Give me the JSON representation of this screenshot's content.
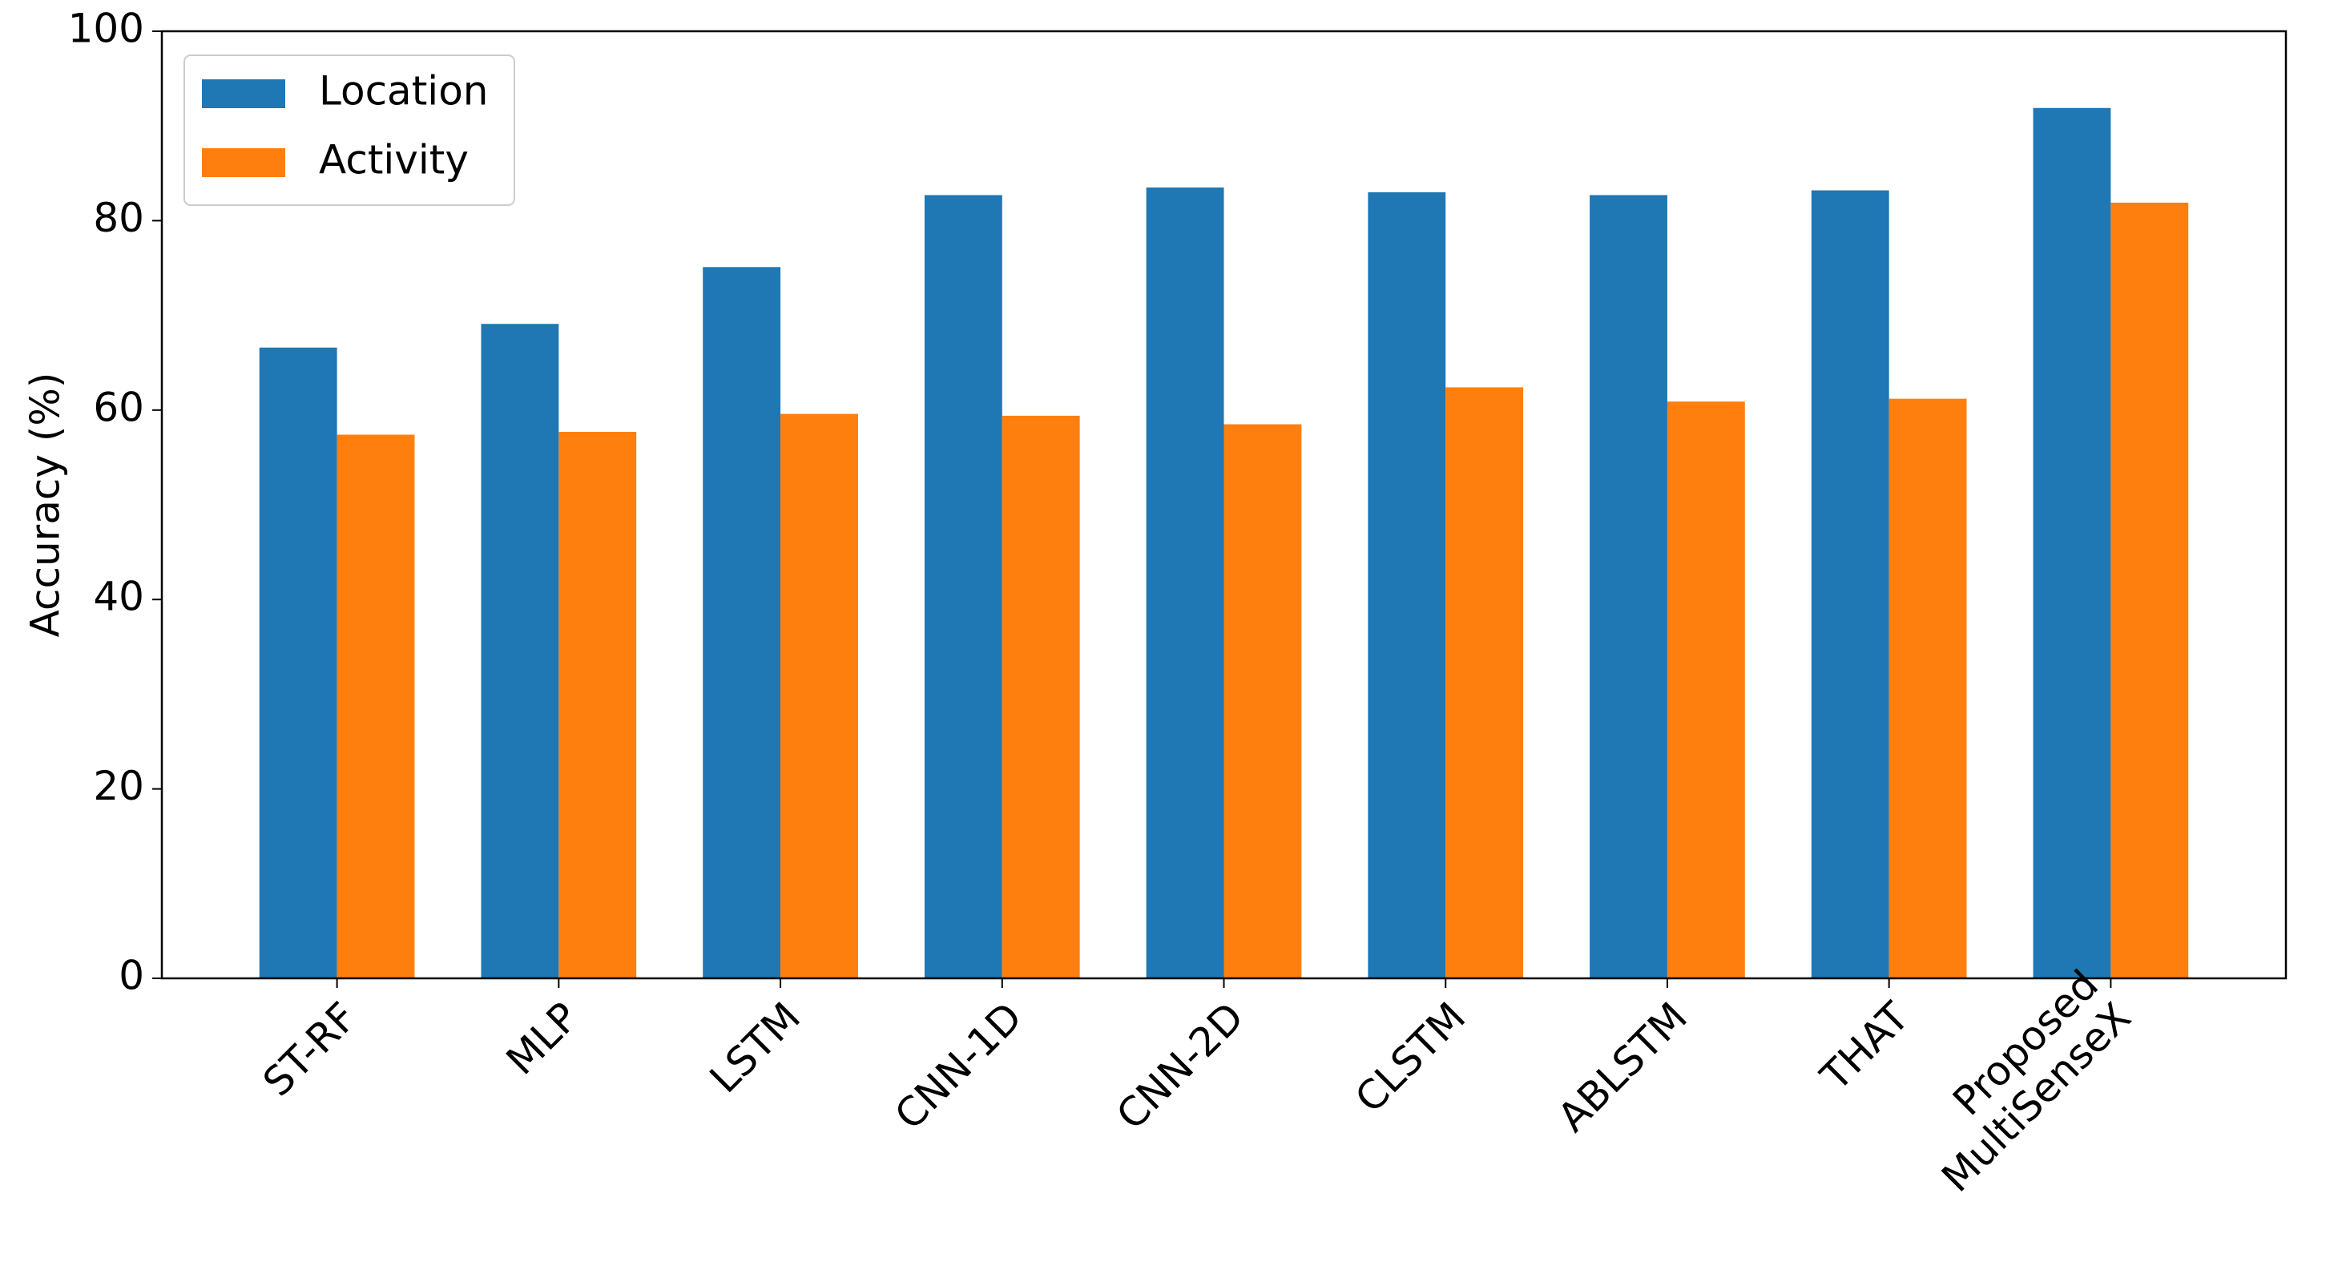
{
  "chart_data": {
    "type": "bar",
    "y_label": "Accuracy (%)",
    "categories": [
      "ST-RF",
      "MLP",
      "LSTM",
      "CNN-1D",
      "CNN-2D",
      "CLSTM",
      "ABLSTM",
      "THAT",
      "Proposed\nMultiSenseX"
    ],
    "series": [
      {
        "name": "Location",
        "color": "#1f77b4",
        "values": [
          66.6,
          69.1,
          75.1,
          82.7,
          83.5,
          83.0,
          82.7,
          83.2,
          91.9
        ]
      },
      {
        "name": "Activity",
        "color": "#ff7f0e",
        "values": [
          57.4,
          57.7,
          59.6,
          59.4,
          58.5,
          62.4,
          60.9,
          61.2,
          81.9
        ]
      }
    ],
    "ylim": [
      0,
      100
    ],
    "yticks": [
      0,
      20,
      40,
      60,
      80,
      100
    ],
    "legend": "upper left",
    "grid": false
  }
}
